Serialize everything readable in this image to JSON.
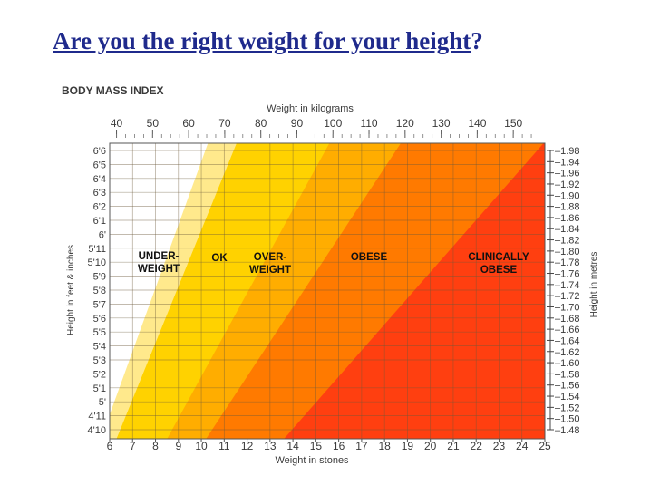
{
  "slide": {
    "title_main": "Are you the right weight for your height",
    "title_mark": "?"
  },
  "chart_data": {
    "type": "heatmap",
    "title": "BODY MASS INDEX",
    "top_axis_label": "Weight in kilograms",
    "bottom_axis_label": "Weight in stones",
    "left_axis_label": "Height in feet & inches",
    "right_axis_label": "Height in metres",
    "kg_ticks": [
      40,
      50,
      60,
      70,
      80,
      90,
      100,
      110,
      120,
      130,
      140,
      150
    ],
    "stone_ticks": [
      6,
      7,
      8,
      9,
      10,
      11,
      12,
      13,
      14,
      15,
      16,
      17,
      18,
      19,
      20,
      21,
      22,
      23,
      24,
      25
    ],
    "feet_ticks": [
      "6'6",
      "6'5",
      "6'4",
      "6'3",
      "6'2",
      "6'1",
      "6'",
      "5'11",
      "5'10",
      "5'9",
      "5'8",
      "5'7",
      "5'6",
      "5'5",
      "5'4",
      "5'3",
      "5'2",
      "5'1",
      "5'",
      "4'11",
      "4'10"
    ],
    "metre_ticks": [
      "1.98",
      "1.94",
      "1.96",
      "1.92",
      "1.90",
      "1.88",
      "1.86",
      "1.84",
      "1.82",
      "1.80",
      "1.78",
      "1.76",
      "1.74",
      "1.72",
      "1.70",
      "1.68",
      "1.66",
      "1.64",
      "1.62",
      "1.60",
      "1.58",
      "1.56",
      "1.54",
      "1.52",
      "1.50",
      "1.48"
    ],
    "xlim_stones": [
      6,
      25
    ],
    "ylim_metres": [
      1.47,
      1.99
    ],
    "bmi_bands": [
      {
        "label": "UNDER-\nWEIGHT",
        "bmi_min": 0,
        "bmi_max": 18.5,
        "color": "#ffffff"
      },
      {
        "label": "OK",
        "bmi_min": 18.5,
        "bmi_max": 25,
        "color": "#ffd200"
      },
      {
        "label": "OVER-\nWEIGHT",
        "bmi_min": 25,
        "bmi_max": 30,
        "color": "#ffad00"
      },
      {
        "label": "OBESE",
        "bmi_min": 30,
        "bmi_max": 40,
        "color": "#ff7a00"
      },
      {
        "label": "CLINICALLY\nOBESE",
        "bmi_min": 40,
        "bmi_max": 99,
        "color": "#ff3f10"
      }
    ],
    "underweight_shade_color": "#ffe98c",
    "grid": true
  }
}
